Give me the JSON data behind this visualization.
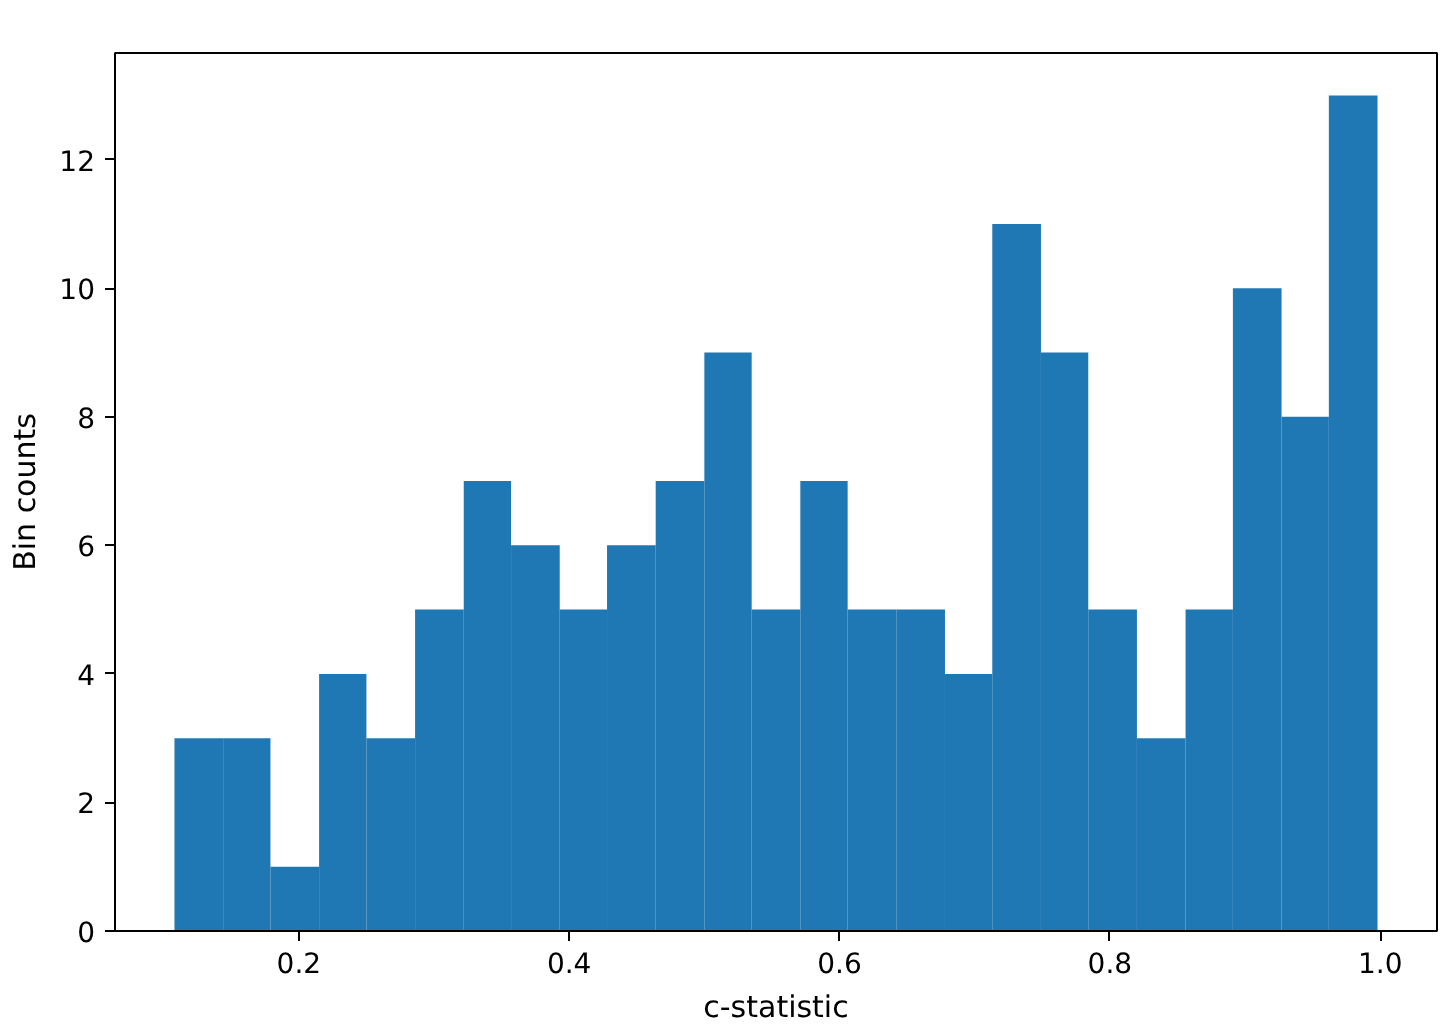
{
  "chart_data": {
    "type": "histogram",
    "xlabel": "c-statistic",
    "ylabel": "Bin counts",
    "bins": [
      0.108,
      0.144,
      0.179,
      0.215,
      0.25,
      0.286,
      0.322,
      0.357,
      0.393,
      0.428,
      0.464,
      0.5,
      0.535,
      0.571,
      0.606,
      0.642,
      0.678,
      0.713,
      0.749,
      0.784,
      0.82,
      0.856,
      0.891,
      0.927,
      0.962,
      0.998
    ],
    "values": [
      3,
      3,
      1,
      4,
      3,
      5,
      7,
      6,
      5,
      6,
      7,
      9,
      5,
      7,
      5,
      5,
      4,
      11,
      9,
      5,
      3,
      5,
      10,
      8,
      13
    ],
    "color": "#1f77b4",
    "xlim": [
      0.064,
      1.042
    ],
    "ylim": [
      0,
      13.66
    ],
    "xticks": [
      0.2,
      0.4,
      0.6,
      0.8,
      {
        "value": 1.0,
        "label": "1.0"
      }
    ],
    "yticks": [
      0,
      2,
      4,
      6,
      8,
      10,
      12
    ],
    "grid": false
  }
}
